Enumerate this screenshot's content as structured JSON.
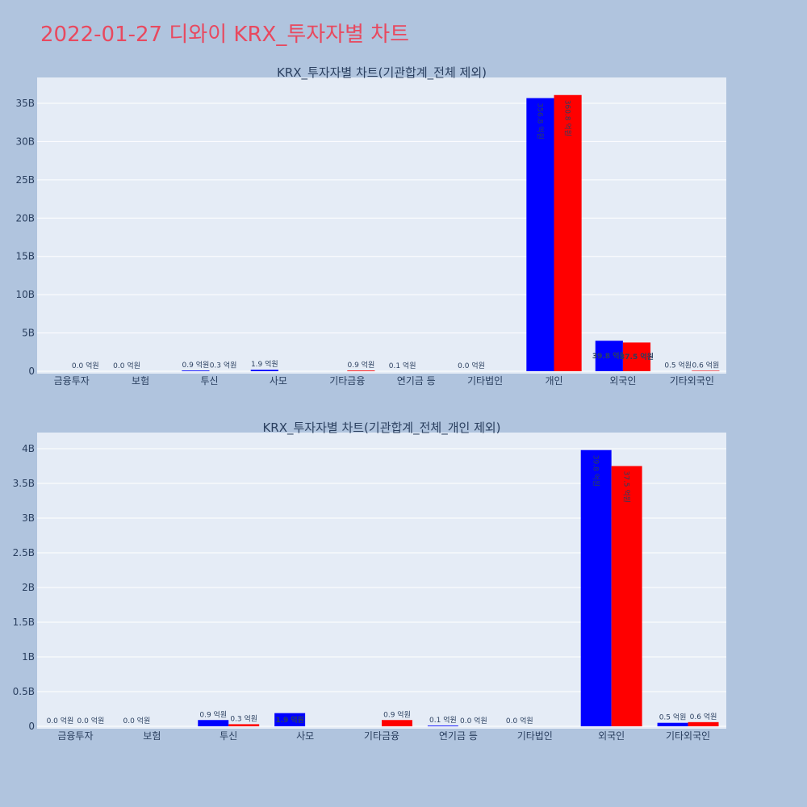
{
  "title": "2022-01-27 디와이 KRX_투자자별 차트",
  "colors": {
    "buy": "#0000ff",
    "sell": "#ff0000",
    "page_bg": "#b0c4de",
    "plot_bg": "#e5ecf6",
    "grid": "#ffffff",
    "title": "#e8495f"
  },
  "chart_data": [
    {
      "type": "bar",
      "title": "KRX_투자자별 차트(기관합계_전체 제외)",
      "categories": [
        "금융투자",
        "보험",
        "투신",
        "사모",
        "기타금융",
        "연기금 등",
        "기타법인",
        "개인",
        "외국인",
        "기타외국인"
      ],
      "series": [
        {
          "values": [
            0,
            0,
            0.09,
            0.19,
            0,
            0.01,
            0,
            35.68,
            3.98,
            0.05
          ],
          "labels": [
            "",
            "0.0 억원",
            "0.9 억원",
            "1.9 억원",
            "",
            "0.1 억원",
            "0.0 억원",
            "356.8 억원",
            "39.8 억원",
            "0.5 억원"
          ]
        },
        {
          "values": [
            0,
            0,
            0.03,
            0,
            0.09,
            0,
            0,
            36.08,
            3.75,
            0.06
          ],
          "labels": [
            "0.0 억원",
            "",
            "0.3 억원",
            "",
            "0.9 억원",
            "",
            "",
            "360.8 억원",
            "37.5 억원",
            "0.6 억원"
          ]
        }
      ],
      "y_unit": "B",
      "ylim": [
        0,
        35
      ],
      "yticks": [
        0,
        5,
        10,
        15,
        20,
        25,
        30,
        35
      ],
      "ytick_labels": [
        "0",
        "5B",
        "10B",
        "15B",
        "20B",
        "25B",
        "30B",
        "35B"
      ],
      "grid": true,
      "legend": false
    },
    {
      "type": "bar",
      "title": "KRX_투자자별 차트(기관합계_전체_개인 제외)",
      "categories": [
        "금융투자",
        "보험",
        "투신",
        "사모",
        "기타금융",
        "연기금 등",
        "기타법인",
        "외국인",
        "기타외국인"
      ],
      "series": [
        {
          "values": [
            0,
            0,
            0.09,
            0.19,
            0,
            0.01,
            0,
            3.98,
            0.05
          ],
          "labels": [
            "0.0 억원",
            "0.0 억원",
            "0.9 억원",
            "1.9 억원",
            "",
            "0.1 억원",
            "0.0 억원",
            "39.8 억원",
            "0.5 억원"
          ]
        },
        {
          "values": [
            0,
            0,
            0.03,
            0,
            0.09,
            0,
            0,
            3.75,
            0.06
          ],
          "labels": [
            "0.0 억원",
            "",
            "0.3 억원",
            "",
            "0.9 억원",
            "0.0 억원",
            "",
            "37.5 억원",
            "0.6 억원"
          ]
        }
      ],
      "y_unit": "B",
      "ylim": [
        0,
        4
      ],
      "yticks": [
        0,
        0.5,
        1,
        1.5,
        2,
        2.5,
        3,
        3.5,
        4
      ],
      "ytick_labels": [
        "0",
        "0.5B",
        "1B",
        "1.5B",
        "2B",
        "2.5B",
        "3B",
        "3.5B",
        "4B"
      ],
      "grid": true,
      "legend": false
    }
  ]
}
